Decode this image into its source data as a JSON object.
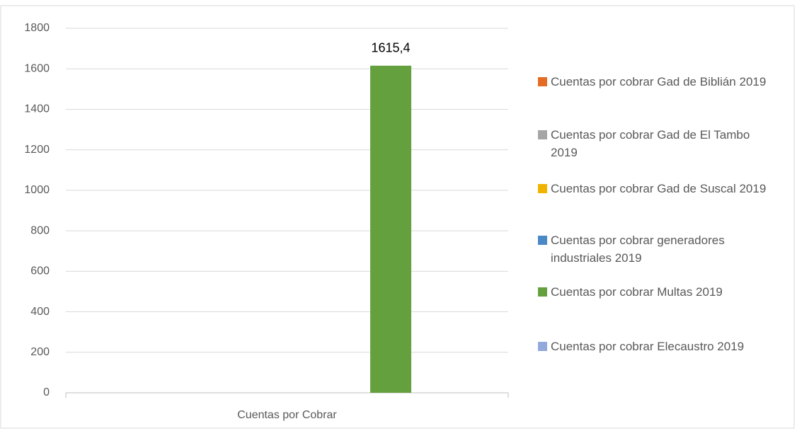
{
  "chart_data": {
    "type": "bar",
    "categories": [
      "Cuentas por Cobrar"
    ],
    "series": [
      {
        "name": "Cuentas por cobrar Gad de Biblián 2019",
        "color": "#e46c25",
        "values": [
          0
        ]
      },
      {
        "name": "Cuentas por cobrar Gad de El Tambo 2019",
        "color": "#a5a5a5",
        "values": [
          0
        ]
      },
      {
        "name": "Cuentas por cobrar Gad de Suscal 2019",
        "color": "#f0b400",
        "values": [
          0
        ]
      },
      {
        "name": "Cuentas por cobrar generadores industriales 2019",
        "color": "#4a88c6",
        "values": [
          0
        ]
      },
      {
        "name": "Cuentas por cobrar Multas 2019",
        "color": "#65a03f",
        "values": [
          1615.4
        ],
        "value_labels": [
          "1615,4"
        ]
      },
      {
        "name": "Cuentas por cobrar Elecaustro 2019",
        "color": "#92a9dc",
        "values": [
          0
        ]
      }
    ],
    "ylim": [
      0,
      1800
    ],
    "yticks": [
      0,
      200,
      400,
      600,
      800,
      1000,
      1200,
      1400,
      1600,
      1800
    ],
    "grid": true,
    "legend": "right"
  }
}
